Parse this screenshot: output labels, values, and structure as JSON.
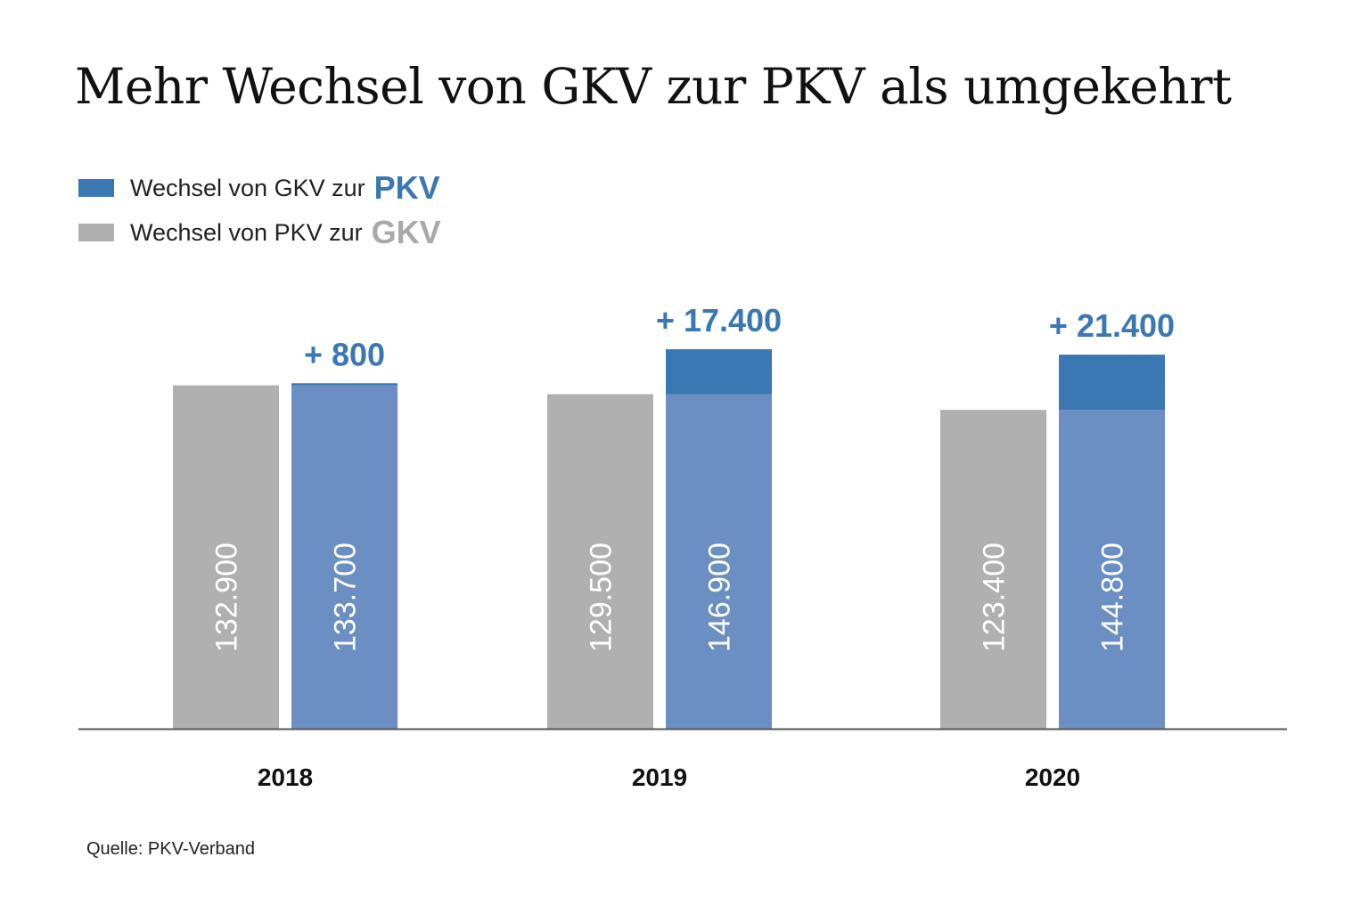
{
  "chart_data": {
    "type": "bar",
    "title": "Mehr Wechsel von GKV zur PKV als umgekehrt",
    "categories": [
      "2018",
      "2019",
      "2020"
    ],
    "series": [
      {
        "name": "Wechsel von PKV zur GKV",
        "values": [
          132900,
          129500,
          123400
        ],
        "labels": [
          "132.900",
          "129.500",
          "123.400"
        ]
      },
      {
        "name": "Wechsel von GKV zur PKV",
        "values": [
          133700,
          146900,
          144800
        ],
        "labels": [
          "133.700",
          "146.900",
          "144.800"
        ]
      }
    ],
    "differences": [
      800,
      17400,
      21400
    ],
    "difference_labels": [
      "+ 800",
      "+ 17.400",
      "+ 21.400"
    ],
    "ylim": [
      0,
      160000
    ],
    "xlabel": "",
    "ylabel": "",
    "grid": false,
    "legend_position": "top-left",
    "colors": {
      "gkv_bar": "#b0b0b0",
      "pkv_bar": "#6b8fc2",
      "pkv_excess": "#3a77b3",
      "accent_text": "#3a77b3",
      "gkv_text": "#a9a9a9",
      "bar_label": "#ffffff",
      "baseline": "#555555"
    }
  },
  "legend": {
    "pkv": {
      "prefix": "Wechsel von GKV zur",
      "emphasis": "PKV"
    },
    "gkv": {
      "prefix": "Wechsel von PKV zur",
      "emphasis": "GKV"
    }
  },
  "source": "Quelle: PKV-Verband"
}
